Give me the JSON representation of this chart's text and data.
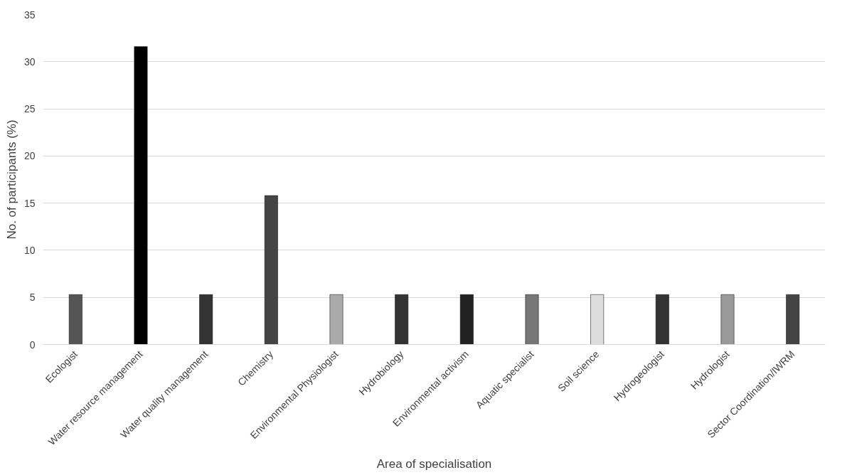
{
  "chart_data": {
    "type": "bar",
    "xlabel": "Area of specialisation",
    "ylabel": "No. of participants (%)",
    "categories": [
      "Ecologist",
      "Water resource management",
      "Water quality management",
      "Chemistry",
      "Environmental Physiologist",
      "Hydrobiology",
      "Environmental activism",
      "Aquatic specialist",
      "Soil science",
      "Hydrogeologist",
      "Hydrologist",
      "Sector Coordination/IWRM"
    ],
    "values": [
      5.3,
      31.6,
      5.3,
      15.8,
      5.3,
      5.3,
      5.3,
      5.3,
      5.3,
      5.3,
      5.3,
      5.3
    ],
    "colors": [
      "#555555",
      "#000000",
      "#333333",
      "#444444",
      "#aaaaaa",
      "#333333",
      "#222222",
      "#777777",
      "#dddddd",
      "#333333",
      "#999999",
      "#444444"
    ],
    "ylim": [
      0,
      35
    ],
    "yticks": [
      0,
      5,
      10,
      15,
      20,
      25,
      30,
      35
    ],
    "grid": "y"
  }
}
